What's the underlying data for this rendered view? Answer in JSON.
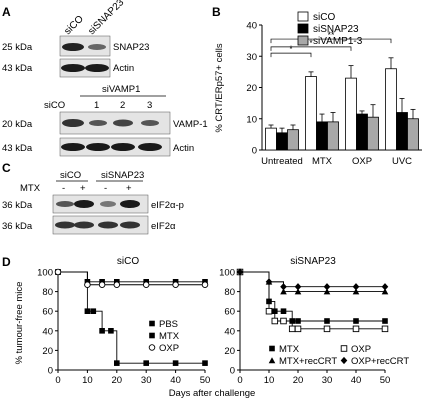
{
  "panels": {
    "A": {
      "letter": "A",
      "lane_siCO": "siCO",
      "lane_siSNAP23": "siSNAP23",
      "blot1_top_mw": "25 kDa",
      "blot1_top_label": "SNAP23",
      "blot1_bottom_mw": "43 kDa",
      "blot1_bottom_label": "Actin",
      "siVAMP1_header": "siVAMP1",
      "lane2_siCO": "siCO",
      "lane2_1": "1",
      "lane2_2": "2",
      "lane2_3": "3",
      "blot2_top_mw": "20 kDa",
      "blot2_top_label": "VAMP-1",
      "blot2_bottom_mw": "43 kDa",
      "blot2_bottom_label": "Actin"
    },
    "B": {
      "letter": "B",
      "legend": [
        "siCO",
        "siSNAP23",
        "siVAMP1-3"
      ],
      "significance": [
        "*",
        "*",
        "**"
      ]
    },
    "C": {
      "letter": "C",
      "lane_siCO": "siCO",
      "lane_siSNAP23": "siSNAP23",
      "mtx_label": "MTX",
      "signs": [
        "-",
        "+",
        "-",
        "+"
      ],
      "blot_top_mw": "36 kDa",
      "blot_top_label": "eIF2α-p",
      "blot_bottom_mw": "36 kDa",
      "blot_bottom_label": "eIF2α"
    },
    "D": {
      "letter": "D",
      "title_left": "siCO",
      "title_right": "siSNAP23",
      "ylabel": "% tumour-free mice",
      "xlabel": "Days after challenge",
      "legend_left": [
        "PBS",
        "MTX",
        "OXP"
      ],
      "legend_right": [
        "MTX",
        "MTX+recCRT",
        "OXP",
        "OXP+recCRT"
      ]
    }
  },
  "chart_data": [
    {
      "type": "bar",
      "panel": "B",
      "ylabel": "% CRT/ERp57+ cells",
      "ylim": [
        0,
        40
      ],
      "yticks": [
        0,
        10,
        20,
        30,
        40
      ],
      "categories": [
        "Untreated",
        "MTX",
        "OXP",
        "UVC"
      ],
      "series": [
        {
          "name": "siCO",
          "color": "#ffffff",
          "values": [
            7,
            23.5,
            23,
            26
          ],
          "errors": [
            1,
            1.5,
            4,
            3.5
          ]
        },
        {
          "name": "siSNAP23",
          "color": "#000000",
          "values": [
            5.5,
            9,
            11.5,
            12
          ],
          "errors": [
            1.5,
            2.5,
            1,
            4.5
          ]
        },
        {
          "name": "siVAMP1-3",
          "color": "#a8a8a8",
          "values": [
            6.5,
            9,
            10.5,
            10
          ],
          "errors": [
            1.5,
            3,
            4,
            3
          ]
        }
      ]
    },
    {
      "type": "line",
      "panel": "D-left",
      "title": "siCO",
      "xlabel": "",
      "ylabel": "% tumour-free mice",
      "xlim": [
        0,
        50
      ],
      "ylim": [
        0,
        100
      ],
      "xticks": [
        0,
        10,
        20,
        30,
        40,
        50
      ],
      "yticks": [
        0,
        20,
        40,
        60,
        80,
        100
      ],
      "series": [
        {
          "name": "PBS",
          "marker": "square-filled",
          "x": [
            0,
            10,
            12,
            15,
            18,
            20,
            30,
            40,
            50
          ],
          "y": [
            100,
            60,
            60,
            40,
            40,
            7,
            7,
            7,
            7
          ]
        },
        {
          "name": "MTX",
          "marker": "square-filled",
          "x": [
            0,
            10,
            15,
            20,
            30,
            40,
            50
          ],
          "y": [
            100,
            90,
            90,
            90,
            90,
            90,
            90
          ]
        },
        {
          "name": "OXP",
          "marker": "circle-open",
          "x": [
            0,
            10,
            15,
            20,
            30,
            40,
            50
          ],
          "y": [
            100,
            87,
            87,
            87,
            87,
            87,
            87
          ]
        }
      ]
    },
    {
      "type": "line",
      "panel": "D-right",
      "title": "siSNAP23",
      "xlabel": "",
      "ylabel": "",
      "xlim": [
        0,
        50
      ],
      "ylim": [
        0,
        100
      ],
      "xticks": [
        0,
        10,
        20,
        30,
        40,
        50
      ],
      "yticks": [
        0,
        20,
        40,
        60,
        80,
        100
      ],
      "series": [
        {
          "name": "MTX",
          "marker": "square-filled",
          "x": [
            0,
            10,
            12,
            15,
            18,
            20,
            30,
            40,
            50
          ],
          "y": [
            100,
            70,
            60,
            60,
            50,
            50,
            50,
            50,
            50
          ]
        },
        {
          "name": "MTX+recCRT",
          "marker": "triangle-filled",
          "x": [
            0,
            10,
            15,
            20,
            30,
            40,
            50
          ],
          "y": [
            100,
            90,
            80,
            80,
            80,
            80,
            80
          ]
        },
        {
          "name": "OXP",
          "marker": "square-open",
          "x": [
            0,
            10,
            12,
            15,
            18,
            20,
            30,
            40,
            50
          ],
          "y": [
            100,
            60,
            50,
            50,
            42,
            42,
            42,
            42,
            42
          ]
        },
        {
          "name": "OXP+recCRT",
          "marker": "diamond-filled",
          "x": [
            0,
            10,
            15,
            20,
            30,
            40,
            50
          ],
          "y": [
            100,
            90,
            85,
            85,
            85,
            85,
            85
          ]
        }
      ]
    }
  ]
}
